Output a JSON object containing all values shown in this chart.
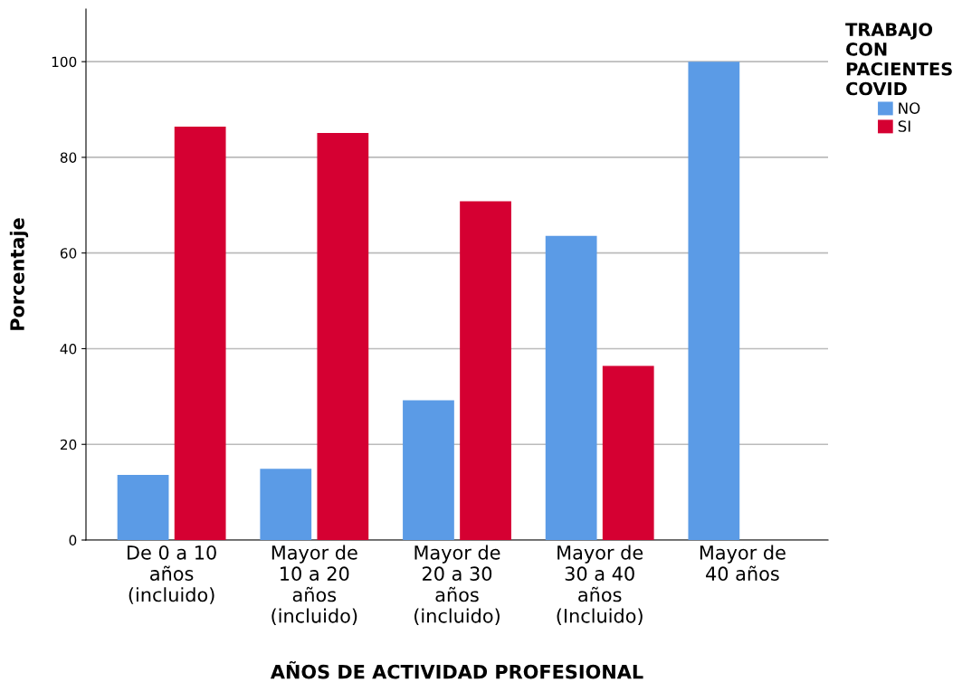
{
  "chart_data": {
    "type": "bar",
    "xlabel": "AÑOS DE ACTIVIDAD PROFESIONAL",
    "ylabel": "Porcentaje",
    "legend_title": "TRABAJO\nCON\nPACIENTES\nCOVID",
    "categories": [
      "De 0 a 10\naños\n(incluido)",
      "Mayor de\n10 a 20\naños\n(incluido)",
      "Mayor de\n20 a 30\naños\n(incluido)",
      "Mayor de\n30 a 40\naños\n(Incluido)",
      "Mayor de\n40 años"
    ],
    "series": [
      {
        "name": "NO",
        "color": "#5b9be6",
        "values": [
          13.6,
          14.9,
          29.2,
          63.6,
          100
        ]
      },
      {
        "name": "SI",
        "color": "#d50032",
        "values": [
          86.4,
          85.1,
          70.8,
          36.4,
          0
        ]
      }
    ],
    "ylim": [
      0,
      111
    ],
    "yticks": [
      0,
      20,
      40,
      60,
      80,
      100
    ],
    "grid": "y",
    "legend": "top right"
  }
}
